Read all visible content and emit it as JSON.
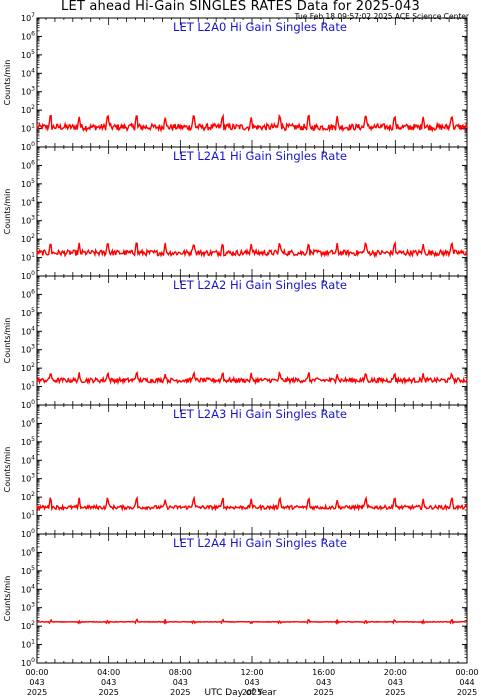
{
  "title": "LET ahead Hi-Gain SINGLES RATES Data for 2025-043",
  "timestamp": "Tue Feb 18 09:57:02 2025 ACE Science Center",
  "chart_data": {
    "type": "line",
    "xlabel": "UTC Day of Year",
    "ylabel": "Counts/min",
    "yscale": "log",
    "ylim": [
      1,
      10000000
    ],
    "y_tick_exponents": [
      0,
      1,
      2,
      3,
      4,
      5,
      6,
      7
    ],
    "xlim_hours": [
      0,
      24
    ],
    "x_ticks": [
      {
        "hour": 0,
        "time": "00:00",
        "doy": "043",
        "year": "2025"
      },
      {
        "hour": 4,
        "time": "04:00",
        "doy": "043",
        "year": "2025"
      },
      {
        "hour": 8,
        "time": "08:00",
        "doy": "043",
        "year": "2025"
      },
      {
        "hour": 12,
        "time": "12:00",
        "doy": "043",
        "year": "2025"
      },
      {
        "hour": 16,
        "time": "16:00",
        "doy": "043",
        "year": "2025"
      },
      {
        "hour": 20,
        "time": "20:00",
        "doy": "043",
        "year": "2025"
      },
      {
        "hour": 24,
        "time": "00:00",
        "doy": "044",
        "year": "2025"
      }
    ],
    "line_color": "#ff0000",
    "panels": [
      {
        "title": "LET L2A0 Hi Gain Singles Rate",
        "base": 12,
        "noise": 0.35,
        "spike": 45,
        "period_h": 1.6,
        "phase_h": 0.75
      },
      {
        "title": "LET L2A1 Hi Gain Singles Rate",
        "base": 18,
        "noise": 0.3,
        "spike": 55,
        "period_h": 1.6,
        "phase_h": 0.75
      },
      {
        "title": "LET L2A2 Hi Gain Singles Rate",
        "base": 22,
        "noise": 0.25,
        "spike": 50,
        "period_h": 1.6,
        "phase_h": 0.75
      },
      {
        "title": "LET L2A3 Hi Gain Singles Rate",
        "base": 28,
        "noise": 0.2,
        "spike": 80,
        "period_h": 1.6,
        "phase_h": 0.75
      },
      {
        "title": "LET L2A4 Hi Gain Singles Rate",
        "base": 170,
        "noise": 0.03,
        "spike": 200,
        "period_h": 1.6,
        "phase_h": 0.75
      }
    ]
  }
}
